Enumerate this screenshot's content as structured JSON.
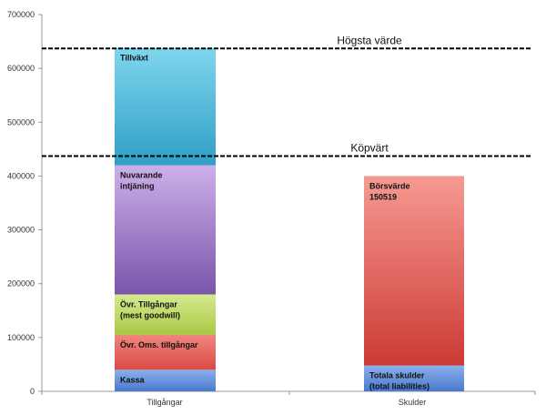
{
  "chart_data": {
    "type": "bar",
    "stacked": true,
    "categories": [
      "Tillgångar",
      "Skulder"
    ],
    "ylim": [
      0,
      700000
    ],
    "yticks": [
      0,
      100000,
      200000,
      300000,
      400000,
      500000,
      600000,
      700000
    ],
    "grid": {
      "horizontal": false,
      "vertical": false
    },
    "axis_color": "#999999",
    "stacks": [
      {
        "category": "Tillgångar",
        "segments": [
          {
            "label": "Kassa",
            "value": 40000,
            "color_top": "#8bb0ec",
            "color_bottom": "#4a78cc"
          },
          {
            "label": "Övr. Oms. tillgångar",
            "value": 65000,
            "color_top": "#f0867e",
            "color_bottom": "#d94a44"
          },
          {
            "label": "Övr. Tillgångar\n(mest goodwill)",
            "value": 75000,
            "color_top": "#d6ea8f",
            "color_bottom": "#a8c844"
          },
          {
            "label": "Nuvarande\nintjäning",
            "value": 240000,
            "color_top": "#cdb0ea",
            "color_bottom": "#7a55aa"
          },
          {
            "label": "Tillväxt",
            "value": 218000,
            "color_top": "#7fd6ee",
            "color_bottom": "#2f9fc6"
          }
        ]
      },
      {
        "category": "Skulder",
        "segments": [
          {
            "label": "Totala skulder\n(total liabilities)",
            "value": 48000,
            "color_top": "#8bb0ec",
            "color_bottom": "#4a78cc"
          },
          {
            "label": "Börsvärde\n150519",
            "value": 352000,
            "color_top": "#f59a92",
            "color_bottom": "#cc3a34"
          }
        ]
      }
    ],
    "reference_lines": [
      {
        "label": "Högsta värde",
        "value": 637000,
        "style": "dashed",
        "color": "#000000"
      },
      {
        "label": "Köpvärt",
        "value": 437000,
        "style": "dashed",
        "color": "#000000"
      }
    ]
  }
}
